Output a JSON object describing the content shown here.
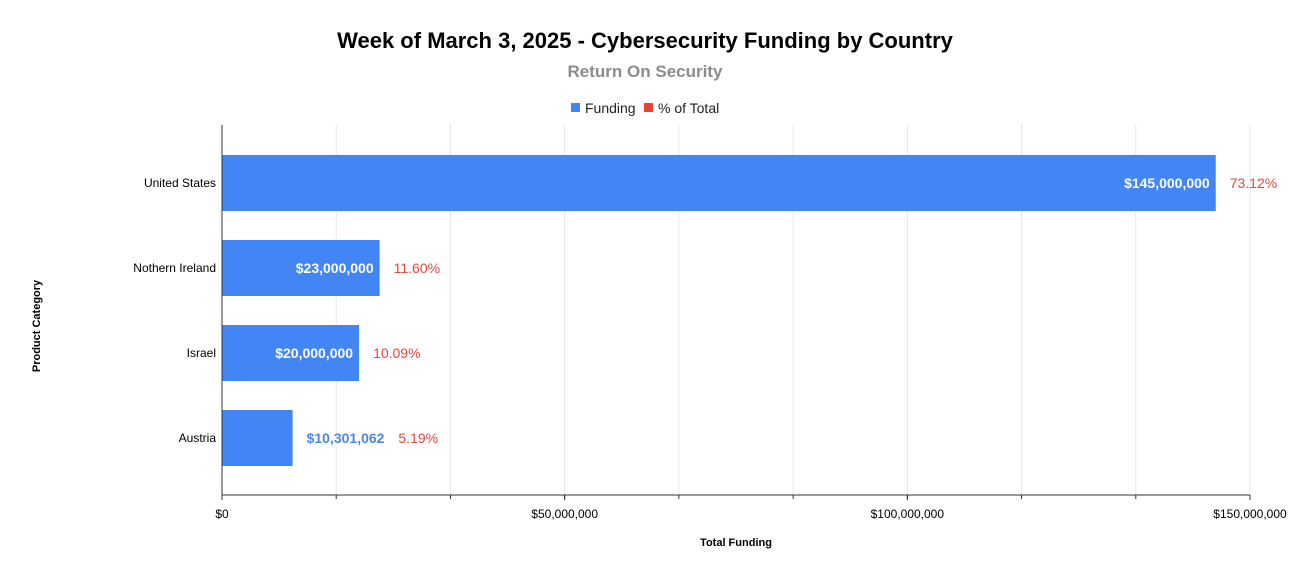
{
  "colors": {
    "funding": "#4285f4",
    "pct": "#ea4335",
    "grid": "#e6e6e6",
    "axis": "#333333"
  },
  "chart_data": {
    "type": "bar",
    "orientation": "horizontal",
    "title": "Week of March 3, 2025 - Cybersecurity Funding by Country",
    "subtitle": "Return On Security",
    "xlabel": "Total Funding",
    "ylabel": "Product Category",
    "xlim": [
      0,
      150000000
    ],
    "legend": [
      {
        "name": "Funding",
        "color": "#4285f4"
      },
      {
        "name": "% of Total",
        "color": "#ea4335"
      }
    ],
    "legend_position": "top-center",
    "x_ticks": [
      {
        "value": 0,
        "label": "$0"
      },
      {
        "value": 50000000,
        "label": "$50,000,000"
      },
      {
        "value": 100000000,
        "label": "$100,000,000"
      },
      {
        "value": 150000000,
        "label": "$150,000,000"
      }
    ],
    "categories": [
      "United States",
      "Nothern Ireland",
      "Israel",
      "Austria"
    ],
    "series": [
      {
        "name": "Funding",
        "values": [
          145000000,
          23000000,
          20000000,
          10301062
        ],
        "labels": [
          "$145,000,000",
          "$23,000,000",
          "$20,000,000",
          "$10,301,062"
        ]
      },
      {
        "name": "% of Total",
        "values": [
          73.12,
          11.6,
          10.09,
          5.19
        ],
        "labels": [
          "73.12%",
          "11.60%",
          "10.09%",
          "5.19%"
        ]
      }
    ]
  }
}
